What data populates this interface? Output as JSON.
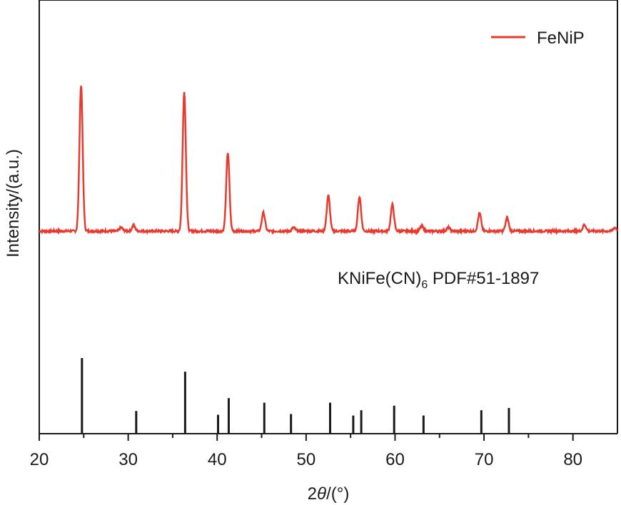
{
  "chart_data": {
    "type": "line",
    "title": "",
    "xlabel_prefix": "2",
    "xlabel_theta": "θ",
    "xlabel_suffix": "/(°)",
    "ylabel": "Intensity/(a.u.)",
    "xlim": [
      20,
      85
    ],
    "xticks": [
      20,
      30,
      40,
      50,
      60,
      70,
      80
    ],
    "grid": false,
    "legend_position": "top-right",
    "series": [
      {
        "name": "FeNiP",
        "color": "#e8392f",
        "baseline": 0,
        "noise": 3,
        "peaks": [
          {
            "x": 24.7,
            "y": 205
          },
          {
            "x": 29.2,
            "y": 5
          },
          {
            "x": 30.6,
            "y": 8
          },
          {
            "x": 36.3,
            "y": 195
          },
          {
            "x": 41.2,
            "y": 110
          },
          {
            "x": 45.2,
            "y": 26
          },
          {
            "x": 48.6,
            "y": 5
          },
          {
            "x": 52.5,
            "y": 50
          },
          {
            "x": 56.0,
            "y": 48
          },
          {
            "x": 59.7,
            "y": 37
          },
          {
            "x": 63.0,
            "y": 7
          },
          {
            "x": 66.0,
            "y": 5
          },
          {
            "x": 69.5,
            "y": 25
          },
          {
            "x": 72.6,
            "y": 18
          },
          {
            "x": 81.3,
            "y": 9
          },
          {
            "x": 84.7,
            "y": 5
          }
        ]
      }
    ],
    "reference": {
      "label_main": "KNiFe(CN)",
      "label_sub": "6",
      "label_tail": " PDF#51-1897",
      "color": "#1a1a1a",
      "sticks": [
        {
          "x": 24.8,
          "y": 100
        },
        {
          "x": 30.9,
          "y": 30
        },
        {
          "x": 36.4,
          "y": 82
        },
        {
          "x": 40.1,
          "y": 25
        },
        {
          "x": 41.3,
          "y": 47
        },
        {
          "x": 45.3,
          "y": 41
        },
        {
          "x": 48.3,
          "y": 26
        },
        {
          "x": 52.7,
          "y": 41
        },
        {
          "x": 55.3,
          "y": 24
        },
        {
          "x": 56.2,
          "y": 31
        },
        {
          "x": 59.9,
          "y": 37
        },
        {
          "x": 63.2,
          "y": 24
        },
        {
          "x": 69.7,
          "y": 31
        },
        {
          "x": 72.8,
          "y": 34
        }
      ]
    }
  }
}
